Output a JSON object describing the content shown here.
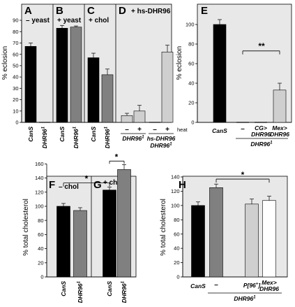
{
  "colors": {
    "panel_bg": "#e8e8e8",
    "black": "#000000",
    "dark_gray": "#808080",
    "light_gray": "#cfcfcf",
    "white": "#ffffff"
  },
  "chart_data": [
    {
      "type": "bar",
      "ylabel": "% eclosion",
      "ylim": [
        0,
        90
      ],
      "yticks": [
        0,
        10,
        20,
        30,
        40,
        50,
        60,
        70,
        80,
        90
      ],
      "panels": [
        {
          "label": "A",
          "title": "– yeast",
          "bars": [
            {
              "category": "CanS",
              "value": 67,
              "error": 3,
              "color": "#000000"
            },
            {
              "category": "DHR96",
              "sup": "1",
              "value": 0,
              "error": 0,
              "color": "#808080"
            }
          ]
        },
        {
          "label": "B",
          "title": "+ yeast",
          "bars": [
            {
              "category": "CanS",
              "value": 83,
              "error": 2.5,
              "color": "#000000"
            },
            {
              "category": "DHR96",
              "sup": "1",
              "value": 84,
              "error": 1,
              "color": "#808080"
            }
          ]
        },
        {
          "label": "C",
          "title": "+ chol",
          "bars": [
            {
              "category": "CanS",
              "value": 57,
              "error": 4,
              "color": "#000000"
            },
            {
              "category": "DHR96",
              "sup": "1",
              "value": 42,
              "error": 5,
              "color": "#808080"
            }
          ]
        },
        {
          "label": "D",
          "title": "+ hs-DHR96",
          "bars": [
            {
              "category": "–",
              "value": 6,
              "error": 2,
              "color": "#cfcfcf"
            },
            {
              "category": "+",
              "value": 10,
              "error": 5,
              "color": "#cfcfcf"
            },
            {
              "category": "–",
              "value": 0,
              "error": 0,
              "color": "#cfcfcf"
            },
            {
              "category": "+",
              "value": 62,
              "error": 6,
              "color": "#cfcfcf"
            }
          ],
          "heat_label": "heat",
          "groups": [
            {
              "name": "DHR96",
              "sup": "1"
            },
            {
              "name": "hs-DHR96",
              "line2": "DHR96",
              "sup": "1"
            }
          ]
        }
      ]
    },
    {
      "label": "E",
      "type": "bar",
      "ylabel": "% eclosion",
      "ylim": [
        0,
        100
      ],
      "yticks": [
        0,
        20,
        40,
        60,
        80,
        100
      ],
      "bars": [
        {
          "category": "CanS",
          "value": 100,
          "error": 5,
          "color": "#000000"
        },
        {
          "category": "–",
          "value": 0,
          "error": 0,
          "color": "#808080"
        },
        {
          "category": "CG>",
          "line2": "DHR96",
          "value": 0,
          "error": 0,
          "color": "#808080"
        },
        {
          "category": "Mex>",
          "line2": "DHR96",
          "value": 33,
          "error": 7,
          "color": "#cfcfcf"
        }
      ],
      "group_label": {
        "name": "DHR96",
        "sup": "1"
      },
      "significance": "**"
    },
    {
      "type": "bar",
      "ylabel": "% total cholesterol",
      "ylim": [
        0,
        160
      ],
      "yticks": [
        0,
        20,
        40,
        60,
        80,
        100,
        120,
        140,
        160
      ],
      "panels": [
        {
          "label": "F",
          "title": "– chol",
          "bars": [
            {
              "category": "CanS",
              "value": 100,
              "error": 4,
              "color": "#000000"
            },
            {
              "category": "DHR96",
              "sup": "1",
              "value": 94,
              "error": 4,
              "color": "#808080"
            }
          ]
        },
        {
          "label": "G",
          "title": "+ chol",
          "bars": [
            {
              "category": "CanS",
              "value": 123,
              "error": 4,
              "color": "#000000"
            },
            {
              "category": "DHR96",
              "sup": "1",
              "value": 152,
              "error": 7,
              "color": "#808080"
            }
          ]
        }
      ],
      "significance": [
        "*",
        "*"
      ]
    },
    {
      "label": "H",
      "type": "bar",
      "ylabel": "% total cholesterol",
      "ylim": [
        0,
        140
      ],
      "yticks": [
        0,
        20,
        40,
        60,
        80,
        100,
        120,
        140
      ],
      "bars": [
        {
          "category": "CanS",
          "value": 100,
          "error": 5,
          "color": "#000000"
        },
        {
          "category": "–",
          "value": 125,
          "error": 5,
          "color": "#808080"
        },
        {
          "category": "P[96",
          "sup": "+",
          "suffix": "]",
          "value": 102,
          "error": 7,
          "color": "#cfcfcf"
        },
        {
          "category": "Mex>",
          "line2": "DHR96",
          "value": 107,
          "error": 6,
          "color": "#ffffff"
        }
      ],
      "group_label": {
        "name": "DHR96",
        "sup": "1"
      },
      "significance": "*"
    }
  ]
}
